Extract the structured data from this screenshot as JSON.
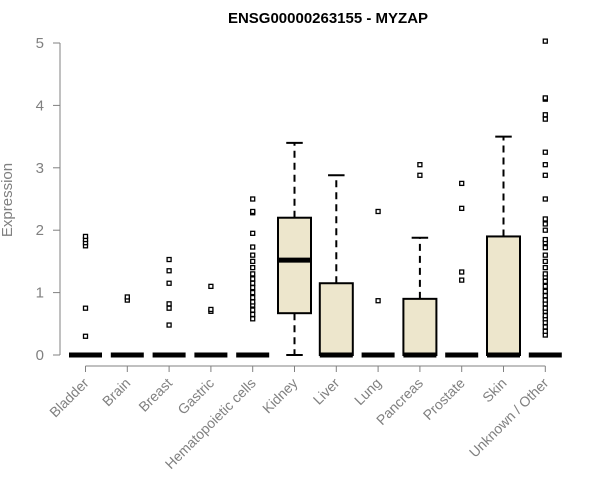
{
  "chart_data": {
    "type": "box",
    "title": "ENSG00000263155 - MYZAP",
    "ylabel": "Expression",
    "ylim": [
      0,
      5
    ],
    "yticks": [
      0,
      1,
      2,
      3,
      4,
      5
    ],
    "box_fill": "#ede6cc",
    "stroke": "#000000",
    "axis_color": "#808080",
    "categories": [
      "Bladder",
      "Brain",
      "Breast",
      "Gastric",
      "Hematopoietic cells",
      "Kidney",
      "Liver",
      "Lung",
      "Pancreas",
      "Prostate",
      "Skin",
      "Unknown / Other"
    ],
    "boxes": [
      {
        "category": "Bladder",
        "q1": 0,
        "median": 0,
        "q3": 0,
        "whisker_low": 0,
        "whisker_high": 0,
        "outliers": [
          0.3,
          0.75,
          1.75,
          1.8,
          1.85,
          1.9
        ]
      },
      {
        "category": "Brain",
        "q1": 0,
        "median": 0,
        "q3": 0,
        "whisker_low": 0,
        "whisker_high": 0,
        "outliers": [
          0.88,
          0.93
        ]
      },
      {
        "category": "Breast",
        "q1": 0,
        "median": 0,
        "q3": 0,
        "whisker_low": 0,
        "whisker_high": 0,
        "outliers": [
          0.48,
          0.75,
          0.82,
          1.15,
          1.35,
          1.53
        ]
      },
      {
        "category": "Gastric",
        "q1": 0,
        "median": 0,
        "q3": 0,
        "whisker_low": 0,
        "whisker_high": 0,
        "outliers": [
          0.7,
          0.73,
          1.1
        ]
      },
      {
        "category": "Hematopoietic cells",
        "q1": 0,
        "median": 0,
        "q3": 0,
        "whisker_low": 0,
        "whisker_high": 0,
        "outliers": [
          0.58,
          0.65,
          0.72,
          0.8,
          0.85,
          0.92,
          1.0,
          1.08,
          1.15,
          1.22,
          1.3,
          1.4,
          1.5,
          1.6,
          1.73,
          1.95,
          2.28,
          2.3,
          2.5
        ]
      },
      {
        "category": "Kidney",
        "q1": 0.67,
        "median": 1.52,
        "q3": 2.2,
        "whisker_low": 0,
        "whisker_high": 3.4,
        "outliers": []
      },
      {
        "category": "Liver",
        "q1": 0,
        "median": 0,
        "q3": 1.15,
        "whisker_low": 0,
        "whisker_high": 2.88,
        "outliers": []
      },
      {
        "category": "Lung",
        "q1": 0,
        "median": 0,
        "q3": 0,
        "whisker_low": 0,
        "whisker_high": 0,
        "outliers": [
          0.87,
          2.3
        ]
      },
      {
        "category": "Pancreas",
        "q1": 0,
        "median": 0,
        "q3": 0.9,
        "whisker_low": 0,
        "whisker_high": 1.88,
        "outliers": [
          2.88,
          3.05
        ]
      },
      {
        "category": "Prostate",
        "q1": 0,
        "median": 0,
        "q3": 0,
        "whisker_low": 0,
        "whisker_high": 0,
        "outliers": [
          1.2,
          1.33,
          2.35,
          2.75
        ]
      },
      {
        "category": "Skin",
        "q1": 0,
        "median": 0,
        "q3": 1.9,
        "whisker_low": 0,
        "whisker_high": 3.5,
        "outliers": []
      },
      {
        "category": "Unknown / Other",
        "q1": 0,
        "median": 0,
        "q3": 0,
        "whisker_low": 0,
        "whisker_high": 0,
        "outliers": [
          0.32,
          0.38,
          0.45,
          0.52,
          0.58,
          0.63,
          0.7,
          0.75,
          0.82,
          0.88,
          0.95,
          1.02,
          1.1,
          1.18,
          1.25,
          1.3,
          1.4,
          1.5,
          1.6,
          1.72,
          1.8,
          1.85,
          2.0,
          2.1,
          2.18,
          2.5,
          2.88,
          3.05,
          3.25,
          3.78,
          3.85,
          4.1,
          4.12,
          5.03
        ]
      }
    ]
  }
}
